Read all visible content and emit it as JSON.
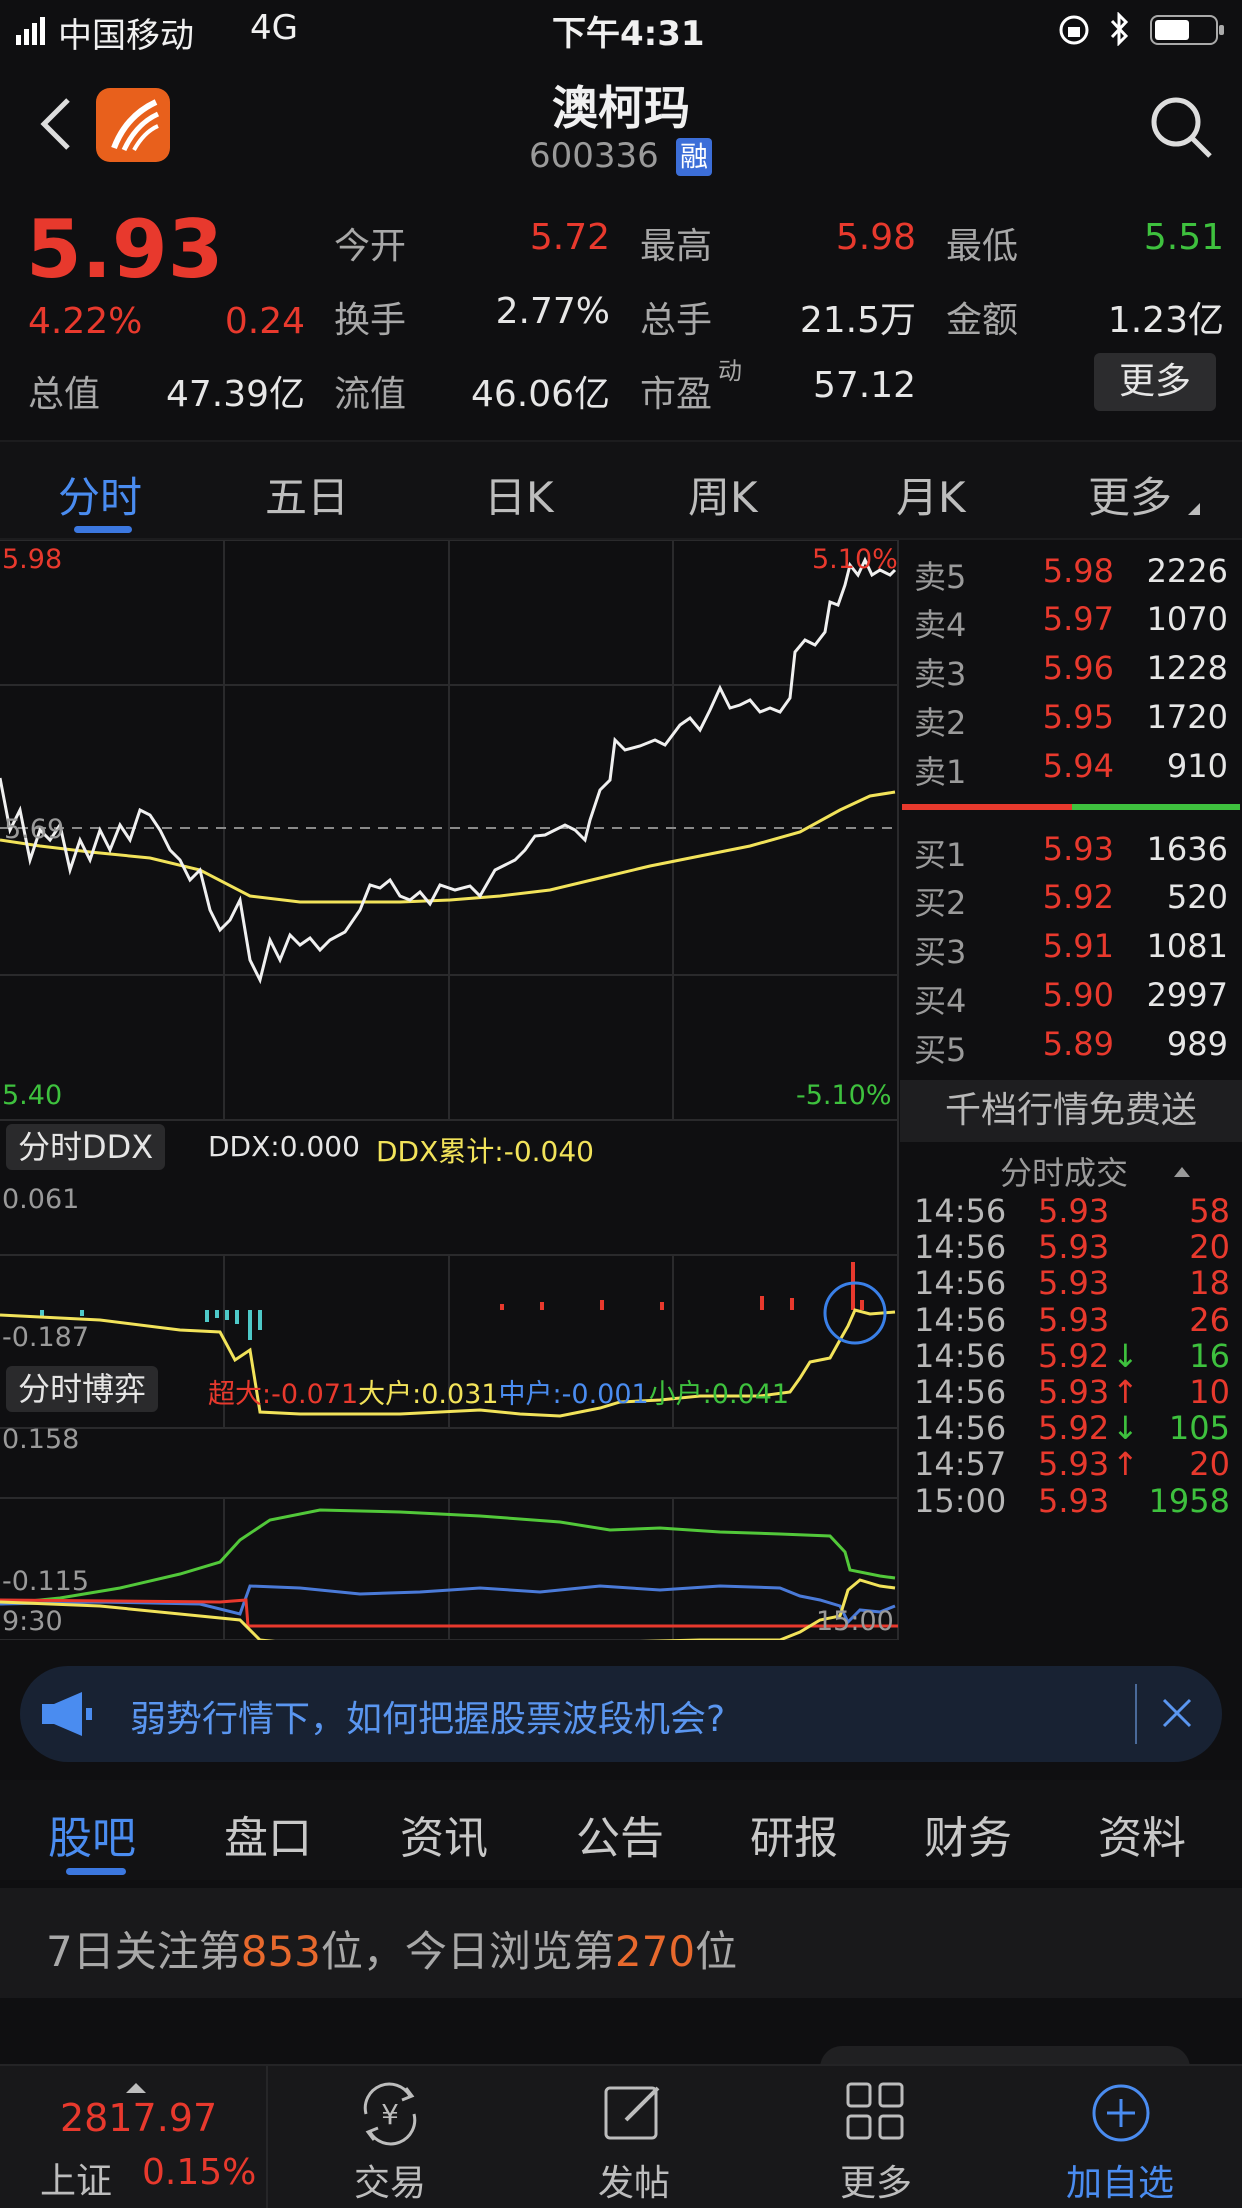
{
  "status_bar": {
    "carrier": "中国移动",
    "network": "4G",
    "time": "下午4:31"
  },
  "header": {
    "title": "澳柯玛",
    "code": "600336",
    "margin_badge": "融"
  },
  "quote": {
    "price": "5.93",
    "change_pct": "4.22%",
    "change": "0.24",
    "total_value_label": "总值",
    "total_value": "47.39亿",
    "open_label": "今开",
    "open": "5.72",
    "high_label": "最高",
    "high": "5.98",
    "low_label": "最低",
    "low": "5.51",
    "turnover_label": "换手",
    "turnover": "2.77%",
    "volume_label": "总手",
    "volume": "21.5万",
    "amount_label": "金额",
    "amount": "1.23亿",
    "float_value_label": "流值",
    "float_value": "46.06亿",
    "pe_label": "市盈",
    "pe_sup": "动",
    "pe": "57.12",
    "more_button": "更多"
  },
  "chart_tabs": [
    "分时",
    "五日",
    "日K",
    "周K",
    "月K",
    "更多"
  ],
  "intraday": {
    "price_high": "5.98",
    "price_low": "5.40",
    "prev_close": "5.69",
    "pct_high": "5.10%",
    "pct_low": "-5.10%",
    "ddx_tab": "分时DDX",
    "ddx": "DDX:0.000",
    "ddx_cum": "DDX累计:-0.040",
    "ddx_max": "0.061",
    "ddx_min": "-0.187",
    "game_tab": "分时博弈",
    "super_large": "超大:-0.071",
    "large": "大户:0.031",
    "medium": "中户:-0.001",
    "small": "小户:0.041",
    "game_max": "0.158",
    "game_min": "-0.115",
    "time_start": "9:30",
    "time_end": "15:00"
  },
  "orderbook": {
    "asks": [
      {
        "label": "卖5",
        "price": "5.98",
        "vol": "2226"
      },
      {
        "label": "卖4",
        "price": "5.97",
        "vol": "1070"
      },
      {
        "label": "卖3",
        "price": "5.96",
        "vol": "1228"
      },
      {
        "label": "卖2",
        "price": "5.95",
        "vol": "1720"
      },
      {
        "label": "卖1",
        "price": "5.94",
        "vol": "910"
      }
    ],
    "bids": [
      {
        "label": "买1",
        "price": "5.93",
        "vol": "1636"
      },
      {
        "label": "买2",
        "price": "5.92",
        "vol": "520"
      },
      {
        "label": "买3",
        "price": "5.91",
        "vol": "1081"
      },
      {
        "label": "买4",
        "price": "5.90",
        "vol": "2997"
      },
      {
        "label": "买5",
        "price": "5.89",
        "vol": "989"
      }
    ],
    "promo": "千档行情免费送"
  },
  "trades": {
    "header": "分时成交",
    "rows": [
      {
        "time": "14:56",
        "price": "5.93",
        "vol": "58",
        "dir": "",
        "vol_color": "red"
      },
      {
        "time": "14:56",
        "price": "5.93",
        "vol": "20",
        "dir": "",
        "vol_color": "red"
      },
      {
        "time": "14:56",
        "price": "5.93",
        "vol": "18",
        "dir": "",
        "vol_color": "red"
      },
      {
        "time": "14:56",
        "price": "5.93",
        "vol": "26",
        "dir": "",
        "vol_color": "red"
      },
      {
        "time": "14:56",
        "price": "5.92",
        "vol": "16",
        "dir": "↓",
        "vol_color": "green"
      },
      {
        "time": "14:56",
        "price": "5.93",
        "vol": "10",
        "dir": "↑",
        "vol_color": "red"
      },
      {
        "time": "14:56",
        "price": "5.92",
        "vol": "105",
        "dir": "↓",
        "vol_color": "green"
      },
      {
        "time": "14:57",
        "price": "5.93",
        "vol": "20",
        "dir": "↑",
        "vol_color": "red"
      },
      {
        "time": "15:00",
        "price": "5.93",
        "vol": "1958",
        "dir": "",
        "vol_color": "green"
      }
    ]
  },
  "banner": {
    "text": "弱势行情下，如何把握股票波段机会?"
  },
  "bottom_tabs": [
    "股吧",
    "盘口",
    "资讯",
    "公告",
    "研报",
    "财务",
    "资料"
  ],
  "rank": {
    "prefix": "7日关注第",
    "focus_rank": "853",
    "middle": "位，今日浏览第",
    "view_rank": "270",
    "suffix": "位"
  },
  "tabbar": {
    "index_value": "2817.97",
    "index_name": "上证",
    "index_change": "0.15%",
    "items": [
      "交易",
      "发帖",
      "更多",
      "加自选"
    ]
  },
  "colors": {
    "up": "#e8392d",
    "down": "#3ec13e",
    "accent": "#4a8cf0",
    "avg_line": "#f2e35a"
  }
}
